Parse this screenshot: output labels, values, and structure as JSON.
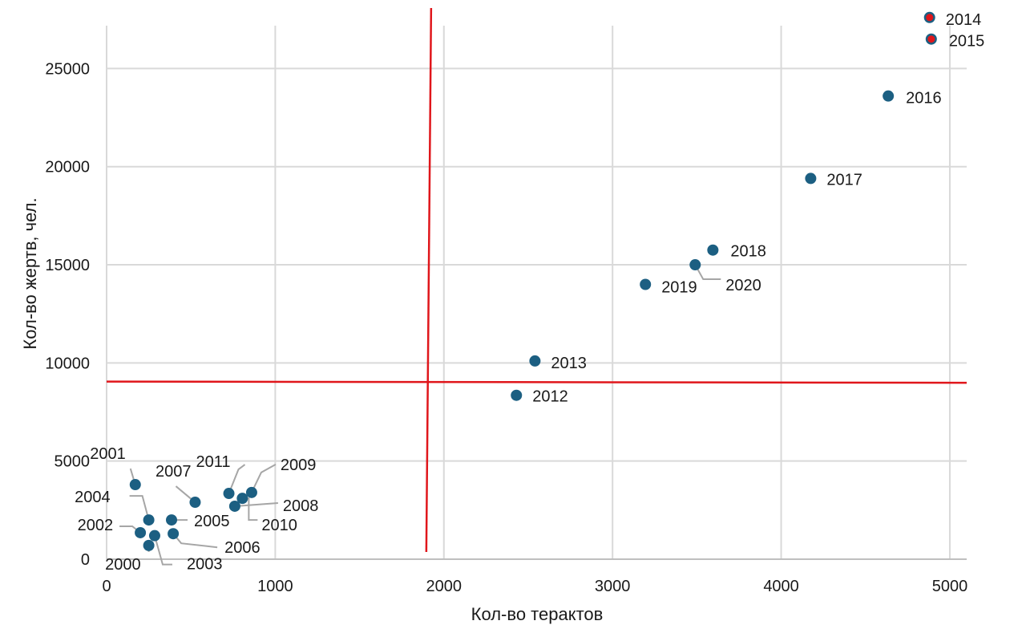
{
  "chart_data": {
    "type": "scatter",
    "xlabel": "Кол-во терактов",
    "ylabel": "Кол-во жертв, чел.",
    "xlim": [
      0,
      5100
    ],
    "ylim": [
      0,
      28000
    ],
    "xticks": [
      "0",
      "1000",
      "2000",
      "3000",
      "4000",
      "5000"
    ],
    "yticks": [
      "0",
      "5000",
      "10000",
      "15000",
      "20000",
      "25000"
    ],
    "grid": true,
    "colors": {
      "point": "#1c5f82",
      "highlight": "#e0161b",
      "reference": "#e0161b",
      "grid": "#d9d9d9",
      "leader": "#a6a6a6"
    },
    "reference_lines": {
      "x": 1910,
      "y": 9050
    },
    "points": [
      {
        "label": "2000",
        "x": 250,
        "y": 700
      },
      {
        "label": "2001",
        "x": 170,
        "y": 3800
      },
      {
        "label": "2002",
        "x": 200,
        "y": 1350
      },
      {
        "label": "2003",
        "x": 285,
        "y": 1200
      },
      {
        "label": "2004",
        "x": 250,
        "y": 2000
      },
      {
        "label": "2005",
        "x": 385,
        "y": 2000
      },
      {
        "label": "2006",
        "x": 395,
        "y": 1300
      },
      {
        "label": "2007",
        "x": 525,
        "y": 2900
      },
      {
        "label": "2008",
        "x": 760,
        "y": 2700
      },
      {
        "label": "2009",
        "x": 860,
        "y": 3400
      },
      {
        "label": "2010",
        "x": 805,
        "y": 3100
      },
      {
        "label": "2011",
        "x": 725,
        "y": 3350
      },
      {
        "label": "2012",
        "x": 2430,
        "y": 8350
      },
      {
        "label": "2013",
        "x": 2540,
        "y": 10100
      },
      {
        "label": "2014",
        "x": 4880,
        "y": 27600,
        "highlight": true
      },
      {
        "label": "2015",
        "x": 4890,
        "y": 26500,
        "highlight": true
      },
      {
        "label": "2016",
        "x": 4635,
        "y": 23600
      },
      {
        "label": "2017",
        "x": 4175,
        "y": 19400
      },
      {
        "label": "2018",
        "x": 3595,
        "y": 15750
      },
      {
        "label": "2019",
        "x": 3195,
        "y": 14000
      },
      {
        "label": "2020",
        "x": 3490,
        "y": 15000
      }
    ]
  }
}
